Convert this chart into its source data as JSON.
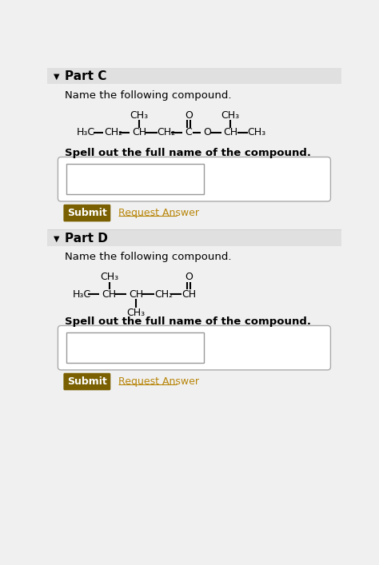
{
  "bg_color": "#f0f0f0",
  "header_bg": "#e0e0e0",
  "white": "#ffffff",
  "black": "#000000",
  "submit_bg": "#7a6000",
  "submit_text": "#ffffff",
  "link_color": "#b8860b",
  "input_border": "#aaaaaa",
  "inner_border": "#999999",
  "part_c_label": "Part C",
  "part_d_label": "Part D",
  "name_prompt": "Name the following compound.",
  "spell_prompt": "Spell out the full name of the compound.",
  "submit_label": "Submit",
  "request_label": "Request Answer",
  "triangle": "▼"
}
